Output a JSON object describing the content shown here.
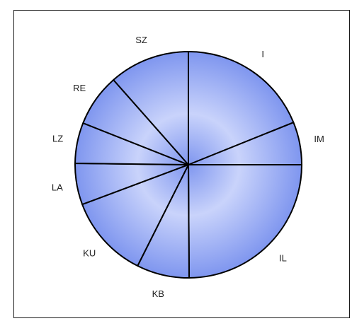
{
  "chart_data": {
    "type": "pie",
    "title": "",
    "categories": [
      "I",
      "IM",
      "IL",
      "KB",
      "KU",
      "LA",
      "LZ",
      "RE",
      "SZ"
    ],
    "values": [
      18.9,
      6.1,
      24.9,
      7.5,
      11.9,
      5.9,
      5.8,
      7.5,
      11.5
    ],
    "start_angle_deg": 0,
    "direction": "clockwise",
    "colors": {
      "fill_center": "#c9d3fb",
      "fill_edge": "#7f96ef",
      "stroke": "#000000",
      "frame": "#1a1a1a"
    },
    "legend": "none",
    "labels_outside": true
  }
}
